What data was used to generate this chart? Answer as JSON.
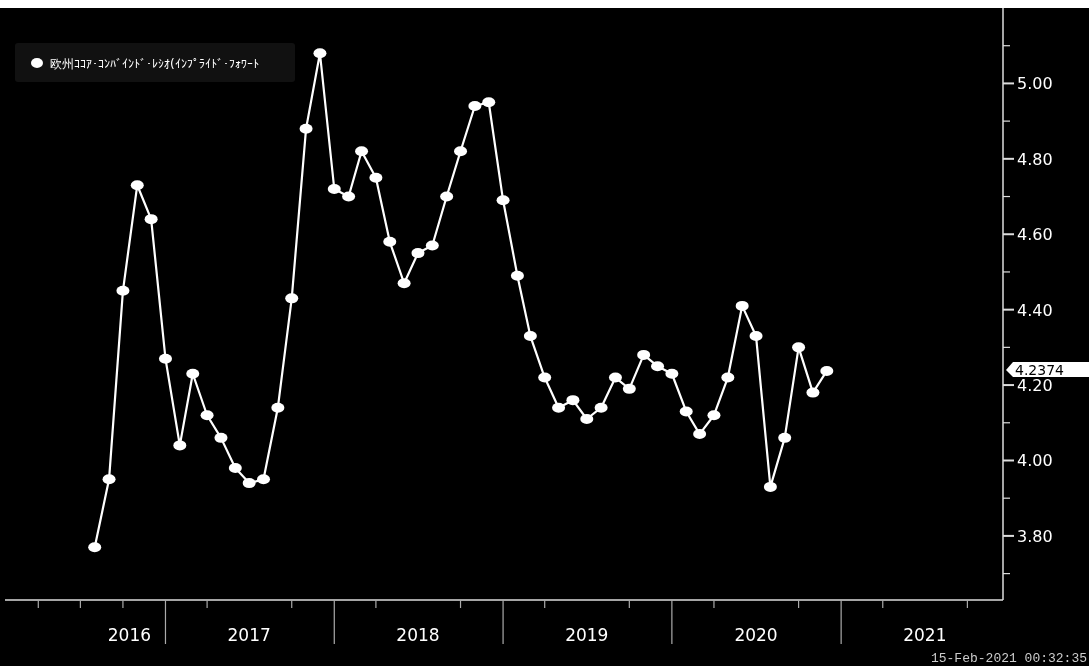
{
  "chart_data": {
    "type": "line",
    "x": [
      "2016-08",
      "2016-09",
      "2016-10",
      "2016-11",
      "2016-12",
      "2017-01",
      "2017-02",
      "2017-03",
      "2017-04",
      "2017-05",
      "2017-06",
      "2017-07",
      "2017-08",
      "2017-09",
      "2017-10",
      "2017-11",
      "2017-12",
      "2018-01",
      "2018-02",
      "2018-03",
      "2018-04",
      "2018-05",
      "2018-06",
      "2018-07",
      "2018-08",
      "2018-09",
      "2018-10",
      "2018-11",
      "2018-12",
      "2019-01",
      "2019-02",
      "2019-03",
      "2019-04",
      "2019-05",
      "2019-06",
      "2019-07",
      "2019-08",
      "2019-09",
      "2019-10",
      "2019-11",
      "2019-12",
      "2020-01",
      "2020-02",
      "2020-03",
      "2020-04",
      "2020-05",
      "2020-06",
      "2020-07",
      "2020-08",
      "2020-09",
      "2020-10",
      "2020-11",
      "2020-12"
    ],
    "series": [
      {
        "name": "欧州ｺｺｱ･ｺﾝﾊﾞｲﾝﾄﾞ･ﾚｼｵ(ｲﾝﾌﾟﾗｲﾄﾞ･ﾌｫﾜｰﾄ",
        "color": "#ffffff",
        "values": [
          3.77,
          3.95,
          4.45,
          4.73,
          4.64,
          4.27,
          4.04,
          4.23,
          4.12,
          4.06,
          3.98,
          3.94,
          3.95,
          4.14,
          4.43,
          4.88,
          5.08,
          4.72,
          4.7,
          4.82,
          4.75,
          4.58,
          4.47,
          4.55,
          4.57,
          4.7,
          4.82,
          4.94,
          4.95,
          4.69,
          4.49,
          4.33,
          4.22,
          4.14,
          4.16,
          4.11,
          4.14,
          4.22,
          4.19,
          4.28,
          4.25,
          4.23,
          4.13,
          4.07,
          4.12,
          4.22,
          4.41,
          4.33,
          3.93,
          4.06,
          4.3,
          4.18,
          4.2374
        ]
      }
    ],
    "xlim": [
      "2016-01-20",
      "2021-12-17"
    ],
    "xticks": [
      {
        "value": "2016-10-15",
        "label": "2016"
      },
      {
        "value": "2017-07-01",
        "label": "2017"
      },
      {
        "value": "2018-07-01",
        "label": "2018"
      },
      {
        "value": "2019-07-01",
        "label": "2019"
      },
      {
        "value": "2020-07-01",
        "label": "2020"
      },
      {
        "value": "2021-07-01",
        "label": "2021"
      },
      {
        "value": "2016-04-01",
        "label": null
      },
      {
        "value": "2016-07-01",
        "label": null
      },
      {
        "value": "2016-10-01",
        "label": null
      },
      {
        "value": "2017-01-01",
        "label": null
      },
      {
        "value": "2017-04-01",
        "label": null
      },
      {
        "value": "2017-10-01",
        "label": null
      },
      {
        "value": "2018-01-01",
        "label": null
      },
      {
        "value": "2018-04-01",
        "label": null
      },
      {
        "value": "2018-10-01",
        "label": null
      },
      {
        "value": "2019-01-01",
        "label": null
      },
      {
        "value": "2019-04-01",
        "label": null
      },
      {
        "value": "2019-10-01",
        "label": null
      },
      {
        "value": "2020-01-01",
        "label": null
      },
      {
        "value": "2020-04-01",
        "label": null
      },
      {
        "value": "2020-10-01",
        "label": null
      },
      {
        "value": "2021-01-01",
        "label": null
      },
      {
        "value": "2021-04-01",
        "label": null
      },
      {
        "value": "2021-10-01",
        "label": null
      }
    ],
    "ylim": [
      3.63,
      5.2
    ],
    "yticks": [
      {
        "value": 3.8,
        "label": "3.80"
      },
      {
        "value": 4.0,
        "label": "4.00"
      },
      {
        "value": 4.2,
        "label": "4.20"
      },
      {
        "value": 4.4,
        "label": "4.40"
      },
      {
        "value": 4.6,
        "label": "4.60"
      },
      {
        "value": 4.8,
        "label": "4.80"
      },
      {
        "value": 5.0,
        "label": "5.00"
      },
      {
        "value": 3.7,
        "label": null
      },
      {
        "value": 3.9,
        "label": null
      },
      {
        "value": 4.1,
        "label": null
      },
      {
        "value": 4.3,
        "label": null
      },
      {
        "value": 4.5,
        "label": null
      },
      {
        "value": 4.7,
        "label": null
      },
      {
        "value": 4.9,
        "label": null
      },
      {
        "value": 5.1,
        "label": null
      }
    ],
    "annotations": [
      "4.2374",
      "15-Feb-2021 00:32:35"
    ],
    "legend": "top left",
    "grid": false,
    "marker": "circle",
    "line_style": "solid"
  }
}
